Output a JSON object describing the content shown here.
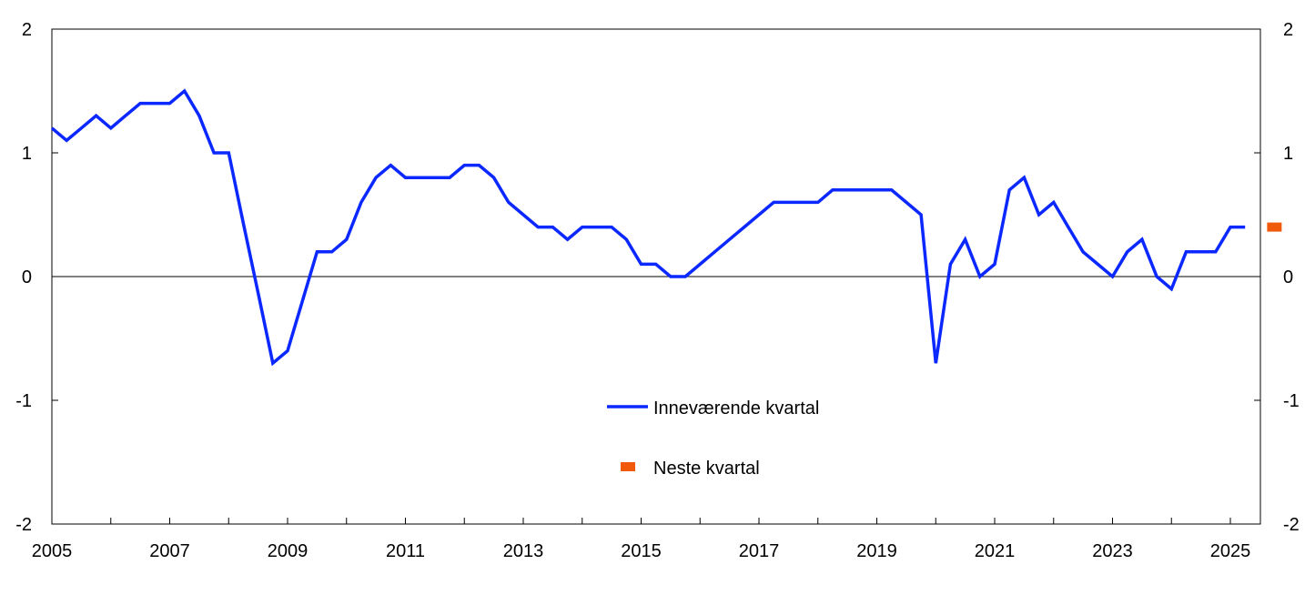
{
  "chart_data": {
    "type": "line",
    "title": "",
    "xlabel": "",
    "ylabel": "",
    "xlim": [
      2005,
      2025.75
    ],
    "ylim": [
      -2,
      2
    ],
    "x_ticks": [
      "2005",
      "2007",
      "2009",
      "2011",
      "2013",
      "2015",
      "2017",
      "2019",
      "2021",
      "2023",
      "2025"
    ],
    "y_ticks": [
      "2",
      "1",
      "0",
      "-1",
      "-2"
    ],
    "legend_position": "center-bottom",
    "colors": {
      "current": "#0a28ff",
      "next": "#f05a0a"
    },
    "series": [
      {
        "name": "Inneværende kvartal",
        "start": 2005.0,
        "step": 0.25,
        "values": [
          1.2,
          1.1,
          1.2,
          1.3,
          1.2,
          1.3,
          1.4,
          1.4,
          1.4,
          1.5,
          1.3,
          1.0,
          1.0,
          0.43,
          -0.13,
          -0.7,
          -0.6,
          -0.2,
          0.2,
          0.2,
          0.3,
          0.6,
          0.8,
          0.9,
          0.8,
          0.8,
          0.8,
          0.8,
          0.9,
          0.9,
          0.8,
          0.6,
          0.5,
          0.4,
          0.4,
          0.3,
          0.4,
          0.4,
          0.4,
          0.3,
          0.1,
          0.1,
          0.0,
          0.0,
          0.1,
          0.2,
          0.3,
          0.4,
          0.5,
          0.6,
          0.6,
          0.6,
          0.6,
          0.7,
          0.7,
          0.7,
          0.7,
          0.7,
          0.6,
          0.5,
          -0.7,
          0.1,
          0.3,
          0.0,
          0.1,
          0.7,
          0.8,
          0.5,
          0.6,
          0.4,
          0.2,
          0.1,
          0.0,
          0.2,
          0.3,
          0.0,
          -0.1,
          0.2,
          0.2,
          0.2,
          0.4,
          0.4
        ]
      },
      {
        "name": "Neste kvartal",
        "x": [
          2025.5
        ],
        "values": [
          0.4
        ]
      }
    ]
  }
}
